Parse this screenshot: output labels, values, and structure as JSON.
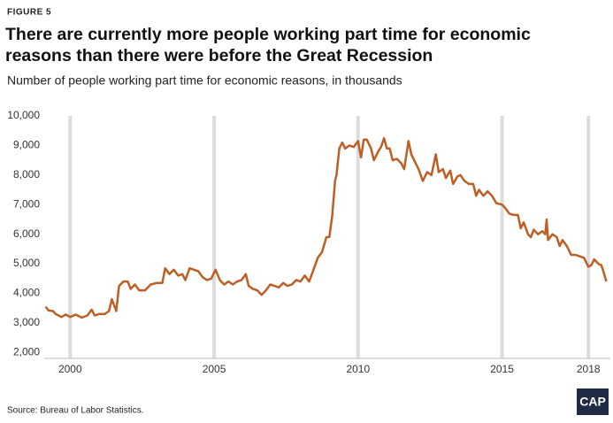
{
  "figure_label": "FIGURE 5",
  "source": "Source: Bureau of Labor Statistics.",
  "logo": "CAP",
  "chart_data": {
    "type": "line",
    "title": "There are currently more people working part time for economic reasons than there were before the Great Recession",
    "subtitle": "Number of people working part time for economic reasons, in thousands",
    "x": [
      1999.15,
      1999.25,
      1999.4,
      1999.5,
      1999.7,
      1999.85,
      2000.0,
      2000.2,
      2000.4,
      2000.6,
      2000.75,
      2000.85,
      2001.0,
      2001.2,
      2001.35,
      2001.45,
      2001.6,
      2001.7,
      2001.85,
      2002.0,
      2002.1,
      2002.25,
      2002.4,
      2002.6,
      2002.8,
      2003.0,
      2003.2,
      2003.3,
      2003.45,
      2003.6,
      2003.75,
      2003.9,
      2004.0,
      2004.15,
      2004.3,
      2004.45,
      2004.6,
      2004.75,
      2004.9,
      2005.05,
      2005.2,
      2005.35,
      2005.5,
      2005.65,
      2005.8,
      2005.95,
      2006.1,
      2006.2,
      2006.35,
      2006.5,
      2006.65,
      2006.8,
      2006.95,
      2007.1,
      2007.25,
      2007.4,
      2007.55,
      2007.7,
      2007.85,
      2008.0,
      2008.15,
      2008.3,
      2008.45,
      2008.6,
      2008.75,
      2008.9,
      2009.0,
      2009.1,
      2009.2,
      2009.25,
      2009.35,
      2009.45,
      2009.55,
      2009.7,
      2009.85,
      2010.0,
      2010.1,
      2010.2,
      2010.3,
      2010.45,
      2010.55,
      2010.7,
      2010.8,
      2010.9,
      2011.0,
      2011.1,
      2011.2,
      2011.35,
      2011.5,
      2011.6,
      2011.75,
      2011.85,
      2012.0,
      2012.1,
      2012.25,
      2012.4,
      2012.55,
      2012.7,
      2012.8,
      2012.95,
      2013.05,
      2013.2,
      2013.3,
      2013.45,
      2013.55,
      2013.7,
      2013.85,
      2014.0,
      2014.1,
      2014.2,
      2014.35,
      2014.5,
      2014.65,
      2014.8,
      2015.0,
      2015.1,
      2015.25,
      2015.4,
      2015.55,
      2015.65,
      2015.75,
      2015.9,
      2016.0,
      2016.1,
      2016.25,
      2016.4,
      2016.5,
      2016.55,
      2016.6,
      2016.75,
      2016.9,
      2017.0,
      2017.1,
      2017.25,
      2017.4,
      2017.55,
      2017.7,
      2017.85,
      2018.0,
      2018.1,
      2018.2,
      2018.35,
      2018.45,
      2018.55,
      2018.62
    ],
    "values": [
      3550,
      3420,
      3400,
      3300,
      3200,
      3280,
      3200,
      3280,
      3180,
      3250,
      3450,
      3250,
      3300,
      3300,
      3400,
      3800,
      3400,
      4250,
      4400,
      4400,
      4150,
      4300,
      4100,
      4100,
      4300,
      4350,
      4350,
      4850,
      4650,
      4800,
      4600,
      4650,
      4450,
      4850,
      4800,
      4750,
      4550,
      4450,
      4500,
      4800,
      4450,
      4300,
      4400,
      4300,
      4400,
      4450,
      4650,
      4250,
      4150,
      4100,
      3950,
      4100,
      4300,
      4250,
      4200,
      4350,
      4250,
      4300,
      4450,
      4400,
      4600,
      4400,
      4800,
      5200,
      5400,
      5900,
      5900,
      6600,
      7800,
      8000,
      8900,
      9100,
      8900,
      9000,
      8950,
      9150,
      8600,
      9200,
      9200,
      8900,
      8500,
      8800,
      8950,
      9250,
      8900,
      8900,
      8500,
      8550,
      8400,
      8200,
      9150,
      8700,
      8400,
      8200,
      7800,
      8100,
      8000,
      8700,
      8100,
      8200,
      7900,
      8150,
      7700,
      7950,
      8000,
      7800,
      7700,
      7700,
      7300,
      7500,
      7300,
      7450,
      7300,
      7050,
      7000,
      6900,
      6700,
      6650,
      6650,
      6200,
      6400,
      6000,
      5900,
      6150,
      6000,
      6100,
      6000,
      6500,
      5800,
      6000,
      5900,
      5600,
      5800,
      5600,
      5300,
      5300,
      5250,
      5200,
      4900,
      4950,
      5150,
      5000,
      4950,
      4650,
      4400
    ],
    "color": "#bd5f24",
    "xlim": [
      1999.1,
      2018.7
    ],
    "xticks": [
      2000,
      2005,
      2010,
      2015,
      2018
    ],
    "ylim": [
      1800,
      10000
    ],
    "yticks": [
      {
        "value": 2000,
        "label": "2,000"
      },
      {
        "value": 3000,
        "label": "3,000"
      },
      {
        "value": 4000,
        "label": "4,000"
      },
      {
        "value": 5000,
        "label": "5,000"
      },
      {
        "value": 6000,
        "label": "6,000"
      },
      {
        "value": 7000,
        "label": "7,000"
      },
      {
        "value": 8000,
        "label": "8,000"
      },
      {
        "value": 9000,
        "label": "9,000"
      },
      {
        "value": 10000,
        "label": "10,000"
      }
    ]
  }
}
